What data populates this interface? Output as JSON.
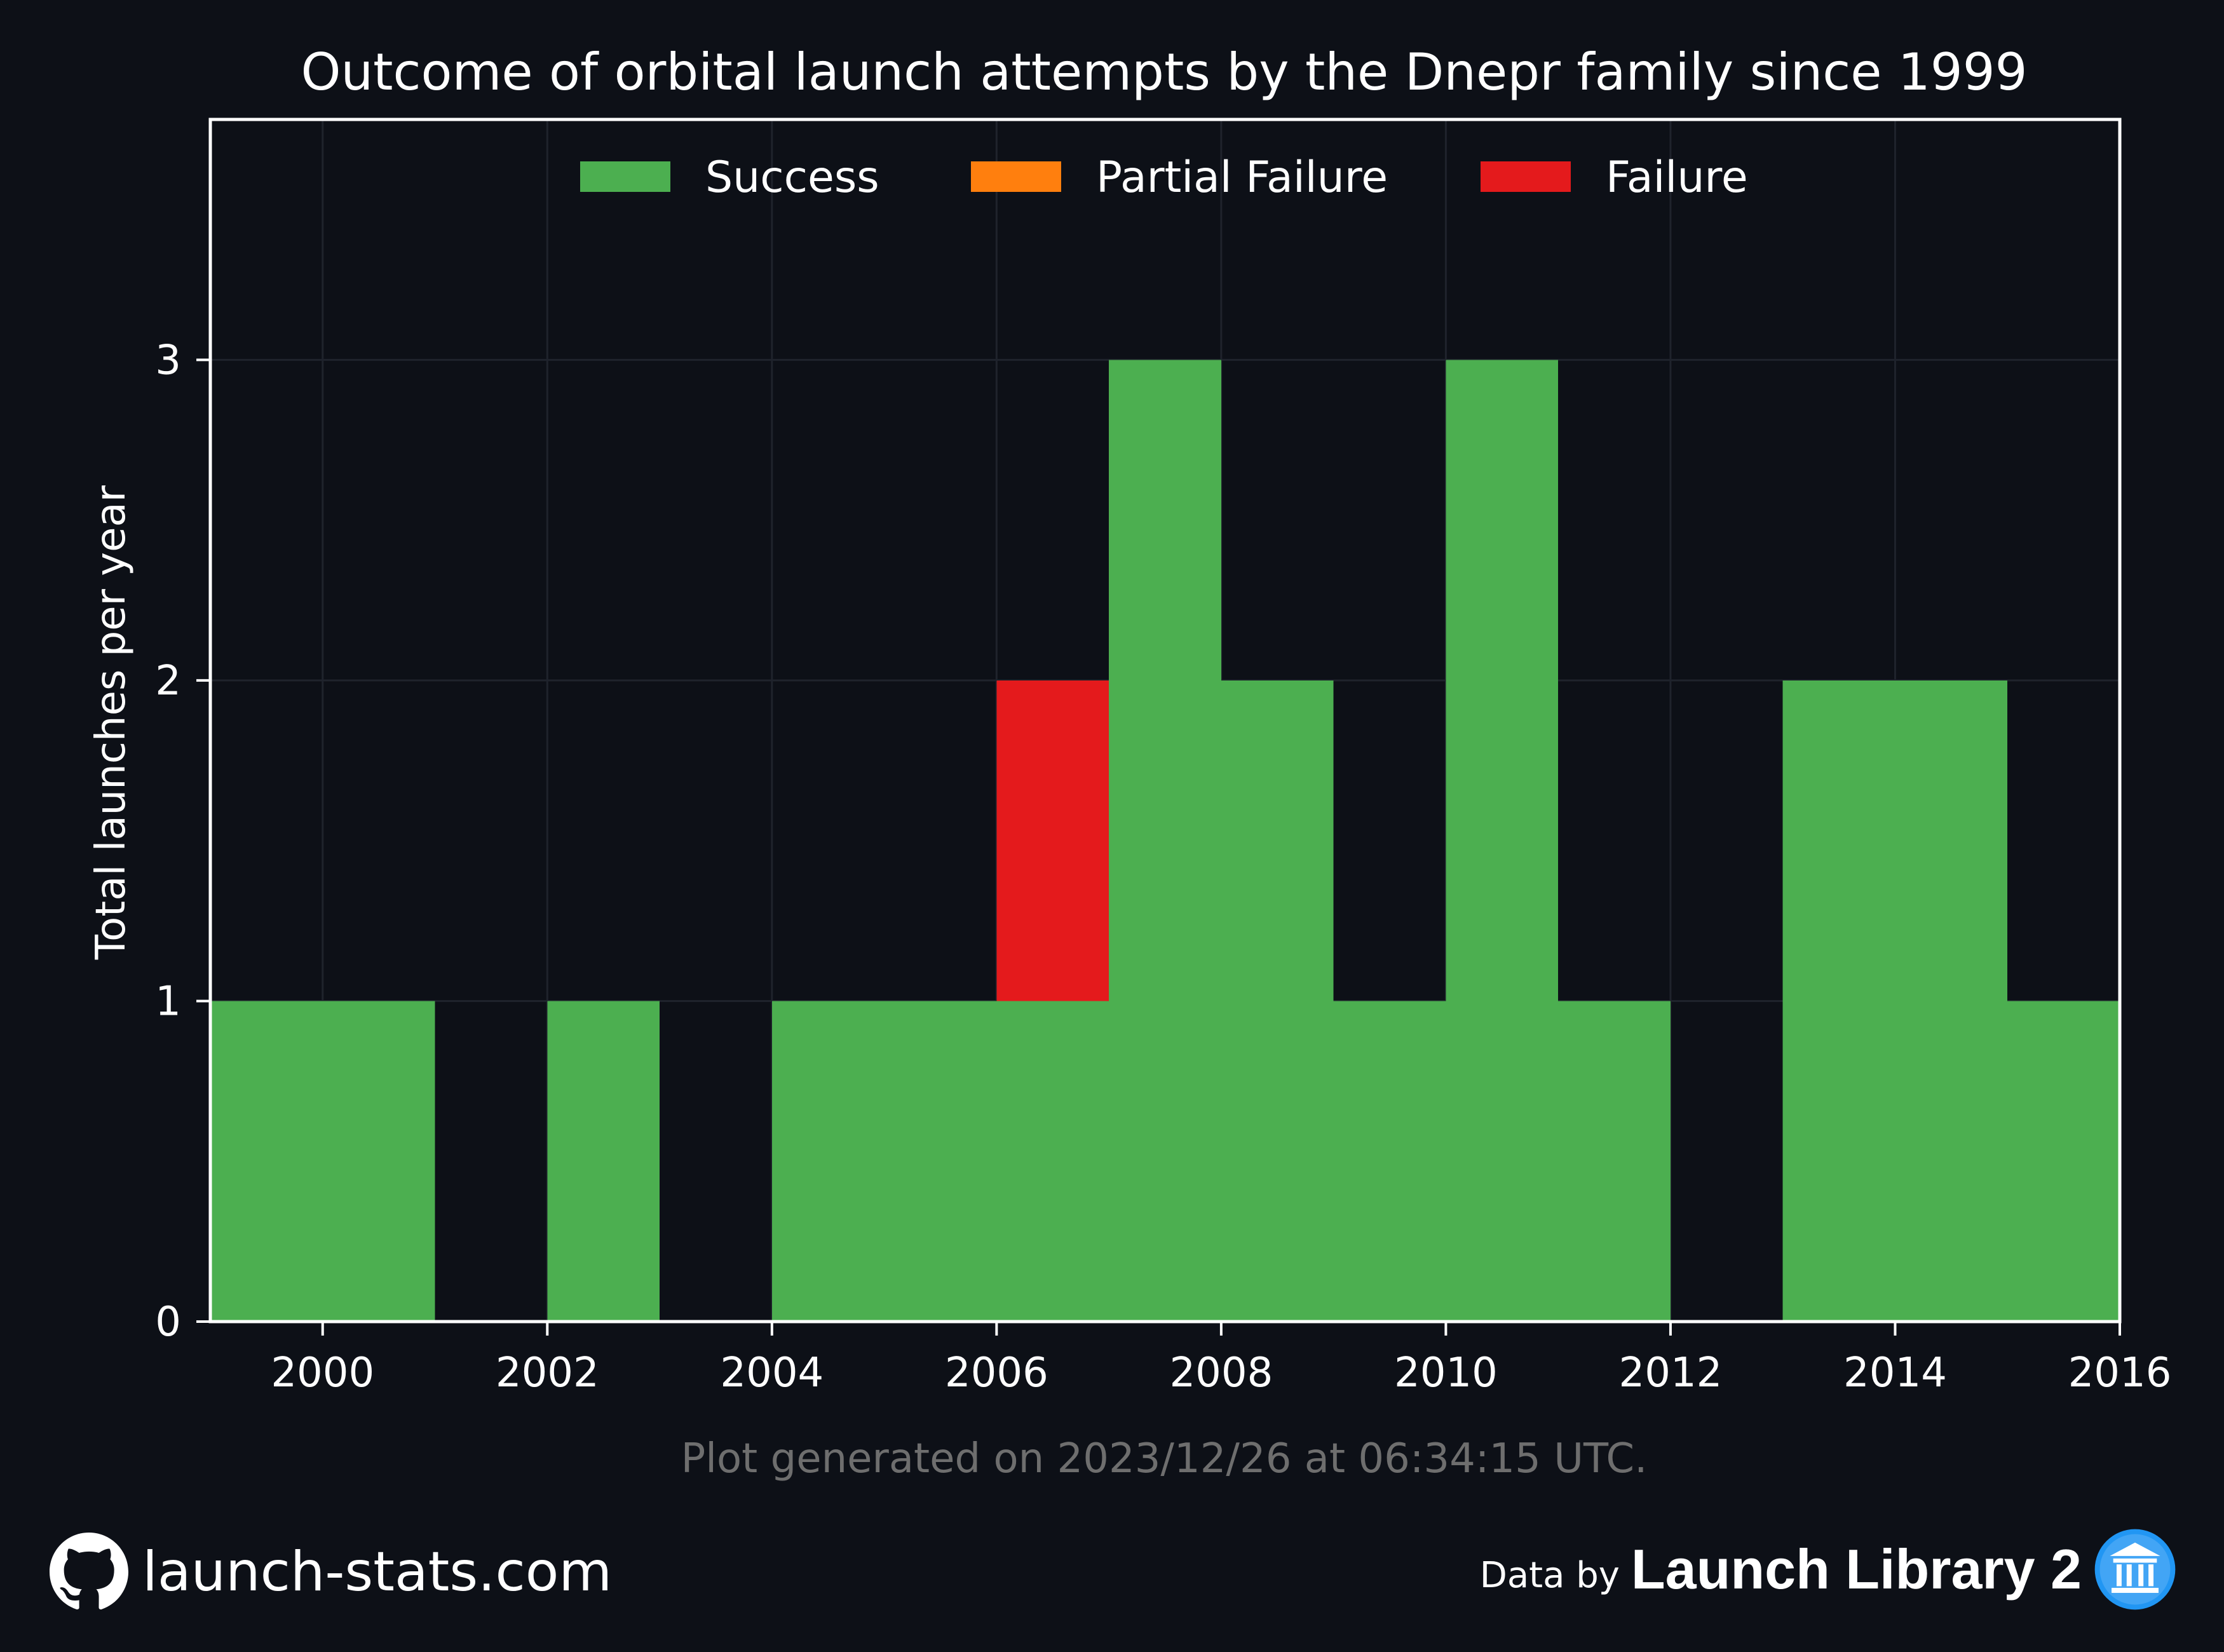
{
  "chart_data": {
    "type": "bar",
    "stacked": true,
    "title": "Outcome of orbital launch attempts by the Dnepr family since 1999",
    "ylabel": "Total launches per year",
    "xlabel": "",
    "xlim": [
      1999,
      2016
    ],
    "ylim": [
      0,
      3.75
    ],
    "x_ticks": [
      2000,
      2002,
      2004,
      2006,
      2008,
      2010,
      2012,
      2014,
      2016
    ],
    "y_ticks": [
      0,
      1,
      2,
      3
    ],
    "x_tick_labels": [
      "2000",
      "2002",
      "2004",
      "2006",
      "2008",
      "2010",
      "2012",
      "2014",
      "2016"
    ],
    "y_tick_labels": [
      "0",
      "1",
      "2",
      "3"
    ],
    "grid": true,
    "legend_position": "top-center",
    "categories": [
      1999,
      2000,
      2001,
      2002,
      2003,
      2004,
      2005,
      2006,
      2007,
      2008,
      2009,
      2010,
      2011,
      2012,
      2013,
      2014,
      2015
    ],
    "series": [
      {
        "name": "Success",
        "color": "#4caf50",
        "values": [
          1,
          1,
          0,
          1,
          0,
          1,
          1,
          1,
          3,
          2,
          1,
          3,
          1,
          0,
          2,
          2,
          1
        ]
      },
      {
        "name": "Partial Failure",
        "color": "#ff7f0e",
        "values": [
          0,
          0,
          0,
          0,
          0,
          0,
          0,
          0,
          0,
          0,
          0,
          0,
          0,
          0,
          0,
          0,
          0
        ]
      },
      {
        "name": "Failure",
        "color": "#e41a1c",
        "values": [
          0,
          0,
          0,
          0,
          0,
          0,
          0,
          1,
          0,
          0,
          0,
          0,
          0,
          0,
          0,
          0,
          0
        ]
      }
    ],
    "footnote": "Plot generated on 2023/12/26 at 06:34:15 UTC."
  },
  "footer": {
    "site": "launch-stats.com",
    "data_by": "Data by",
    "provider": "Launch Library 2",
    "site_icon": "github-icon",
    "provider_icon": "launch-library-icon"
  },
  "colors": {
    "background": "#0d1017",
    "grid": "#1f232c",
    "axis": "#ffffff"
  }
}
